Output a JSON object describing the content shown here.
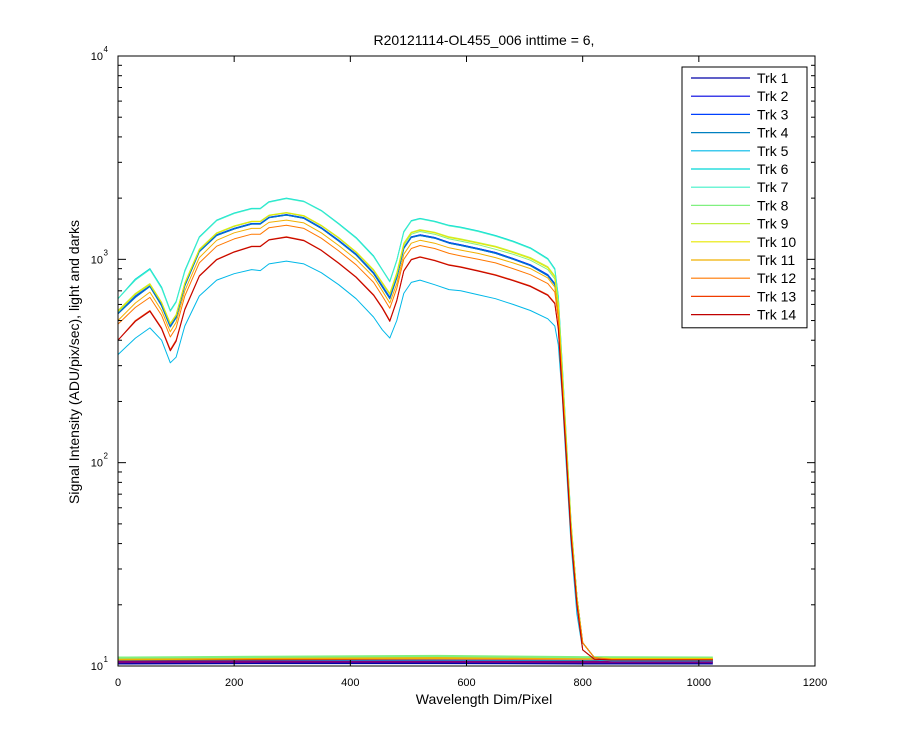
{
  "chart_data": {
    "type": "line",
    "title": "R20121114-OL455_006 inttime = 6,",
    "xlabel": "Wavelength Dim/Pixel",
    "ylabel": "Signal Intensity (ADU/pix/sec), light and darks",
    "xlim": [
      0,
      1200
    ],
    "ylim": [
      10,
      10000
    ],
    "yscale": "log",
    "grid": false,
    "legend_position": "top-right",
    "x_ticks": [
      0,
      200,
      400,
      600,
      800,
      1000,
      1200
    ],
    "y_ticks": [
      {
        "value": 10,
        "base": "10",
        "exp": "1"
      },
      {
        "value": 100,
        "base": "10",
        "exp": "2"
      },
      {
        "value": 1000,
        "base": "10",
        "exp": "3"
      },
      {
        "value": 10000,
        "base": "10",
        "exp": "4"
      }
    ],
    "profile_x": [
      0,
      30,
      55,
      75,
      90,
      100,
      115,
      140,
      170,
      200,
      230,
      245,
      260,
      290,
      320,
      350,
      380,
      410,
      440,
      455,
      468,
      480,
      492,
      505,
      520,
      545,
      570,
      590,
      620,
      650,
      680,
      710,
      740,
      752,
      758,
      765,
      772,
      780,
      790,
      800,
      820,
      850,
      1024
    ],
    "series": [
      {
        "name": "Trk 1",
        "color": "#0000a8",
        "values": [
          540,
          660,
          740,
          600,
          470,
          520,
          750,
          1100,
          1320,
          1420,
          1500,
          1500,
          1610,
          1660,
          1600,
          1430,
          1240,
          1060,
          860,
          740,
          650,
          820,
          1140,
          1290,
          1320,
          1280,
          1210,
          1180,
          1130,
          1080,
          1010,
          940,
          840,
          760,
          560,
          260,
          120,
          50,
          22,
          13,
          11,
          10.8,
          10.8
        ]
      },
      {
        "name": "Trk 2",
        "color": "#0000e0",
        "values": [
          540,
          650,
          735,
          590,
          465,
          515,
          740,
          1090,
          1310,
          1410,
          1490,
          1490,
          1600,
          1650,
          1590,
          1420,
          1230,
          1050,
          850,
          730,
          640,
          810,
          1130,
          1280,
          1310,
          1270,
          1200,
          1170,
          1120,
          1070,
          1000,
          930,
          830,
          750,
          550,
          255,
          118,
          48,
          22,
          13,
          11,
          10.7,
          10.7
        ]
      },
      {
        "name": "Trk 3",
        "color": "#0040ff",
        "values": [
          545,
          660,
          740,
          600,
          470,
          520,
          750,
          1100,
          1320,
          1420,
          1500,
          1500,
          1610,
          1660,
          1600,
          1430,
          1240,
          1060,
          860,
          740,
          650,
          820,
          1140,
          1290,
          1320,
          1280,
          1210,
          1180,
          1130,
          1080,
          1010,
          940,
          840,
          760,
          560,
          260,
          120,
          50,
          22,
          13,
          11,
          10.8,
          10.8
        ]
      },
      {
        "name": "Trk 4",
        "color": "#0080c0",
        "values": [
          540,
          650,
          735,
          590,
          465,
          515,
          740,
          1090,
          1310,
          1410,
          1490,
          1490,
          1600,
          1650,
          1590,
          1420,
          1230,
          1050,
          850,
          730,
          640,
          810,
          1130,
          1280,
          1310,
          1270,
          1200,
          1170,
          1120,
          1070,
          1000,
          930,
          830,
          750,
          550,
          255,
          118,
          48,
          22,
          13,
          11,
          10.7,
          10.7
        ]
      },
      {
        "name": "Trk 5",
        "color": "#00b8e8",
        "values": [
          340,
          410,
          460,
          400,
          310,
          330,
          470,
          660,
          790,
          850,
          890,
          880,
          950,
          980,
          950,
          860,
          750,
          640,
          520,
          450,
          410,
          500,
          680,
          770,
          790,
          750,
          710,
          700,
          670,
          640,
          600,
          560,
          510,
          470,
          380,
          210,
          95,
          40,
          18,
          12,
          10.8,
          10.6,
          10.6
        ]
      },
      {
        "name": "Trk 6",
        "color": "#00d8d8",
        "values": [
          640,
          800,
          900,
          730,
          560,
          620,
          880,
          1290,
          1560,
          1690,
          1780,
          1780,
          1920,
          2000,
          1930,
          1740,
          1500,
          1280,
          1040,
          890,
          780,
          990,
          1370,
          1550,
          1590,
          1540,
          1470,
          1440,
          1380,
          1310,
          1230,
          1140,
          1010,
          900,
          660,
          300,
          130,
          52,
          22,
          13,
          11,
          10.9,
          10.9
        ]
      },
      {
        "name": "Trk 7",
        "color": "#40f0c8",
        "values": [
          640,
          790,
          890,
          720,
          555,
          615,
          870,
          1280,
          1550,
          1680,
          1770,
          1770,
          1910,
          1990,
          1920,
          1730,
          1490,
          1270,
          1030,
          885,
          775,
          985,
          1360,
          1540,
          1580,
          1530,
          1460,
          1430,
          1370,
          1300,
          1220,
          1130,
          1000,
          890,
          655,
          298,
          129,
          51,
          22,
          13,
          11,
          10.9,
          10.9
        ]
      },
      {
        "name": "Trk 8",
        "color": "#80f080",
        "values": [
          550,
          670,
          750,
          610,
          480,
          530,
          760,
          1110,
          1340,
          1450,
          1530,
          1530,
          1640,
          1690,
          1630,
          1460,
          1270,
          1080,
          880,
          760,
          670,
          840,
          1170,
          1330,
          1370,
          1330,
          1260,
          1230,
          1180,
          1120,
          1060,
          990,
          890,
          800,
          590,
          270,
          124,
          50,
          22,
          13,
          11,
          10.9,
          10.9
        ]
      },
      {
        "name": "Trk 9",
        "color": "#c0f040",
        "values": [
          560,
          680,
          760,
          615,
          485,
          535,
          765,
          1120,
          1350,
          1460,
          1540,
          1540,
          1650,
          1700,
          1640,
          1470,
          1280,
          1090,
          890,
          770,
          680,
          860,
          1200,
          1360,
          1400,
          1360,
          1290,
          1260,
          1210,
          1160,
          1090,
          1020,
          920,
          830,
          610,
          280,
          126,
          51,
          22,
          13,
          11,
          10.9,
          10.9
        ]
      },
      {
        "name": "Trk 10",
        "color": "#e8e800",
        "values": [
          555,
          675,
          755,
          612,
          482,
          532,
          762,
          1115,
          1345,
          1455,
          1535,
          1535,
          1645,
          1695,
          1635,
          1465,
          1275,
          1085,
          885,
          765,
          675,
          855,
          1190,
          1350,
          1390,
          1350,
          1280,
          1250,
          1200,
          1150,
          1080,
          1010,
          910,
          820,
          605,
          278,
          125,
          50,
          22,
          13,
          11,
          10.9,
          10.9
        ]
      },
      {
        "name": "Trk 11",
        "color": "#f0b000",
        "values": [
          500,
          610,
          690,
          560,
          440,
          490,
          700,
          1020,
          1240,
          1350,
          1420,
          1420,
          1520,
          1560,
          1510,
          1350,
          1170,
          1000,
          820,
          700,
          610,
          760,
          1060,
          1200,
          1240,
          1200,
          1140,
          1110,
          1070,
          1020,
          960,
          900,
          810,
          730,
          540,
          250,
          115,
          47,
          21,
          13,
          11,
          10.8,
          10.8
        ]
      },
      {
        "name": "Trk 12",
        "color": "#ff7800",
        "values": [
          480,
          580,
          650,
          530,
          415,
          460,
          660,
          960,
          1160,
          1260,
          1330,
          1330,
          1430,
          1470,
          1420,
          1270,
          1100,
          940,
          770,
          660,
          575,
          720,
          1000,
          1130,
          1170,
          1130,
          1070,
          1040,
          1000,
          960,
          900,
          840,
          760,
          690,
          510,
          240,
          112,
          46,
          21,
          13,
          11,
          10.8,
          10.8
        ]
      },
      {
        "name": "Trk 13",
        "color": "#f03c00",
        "values": [
          400,
          500,
          560,
          460,
          360,
          400,
          570,
          830,
          1000,
          1090,
          1160,
          1160,
          1250,
          1290,
          1240,
          1110,
          960,
          820,
          670,
          580,
          500,
          630,
          880,
          1000,
          1030,
          990,
          940,
          920,
          880,
          840,
          790,
          740,
          670,
          610,
          460,
          220,
          105,
          44,
          20,
          12,
          10.8,
          10.7,
          10.7
        ]
      },
      {
        "name": "Trk 14",
        "color": "#c00000",
        "values": [
          400,
          495,
          555,
          455,
          355,
          395,
          565,
          825,
          995,
          1085,
          1155,
          1155,
          1245,
          1285,
          1235,
          1105,
          955,
          815,
          665,
          575,
          495,
          625,
          875,
          995,
          1025,
          985,
          935,
          915,
          875,
          835,
          785,
          735,
          665,
          605,
          455,
          218,
          104,
          43,
          20,
          12,
          10.8,
          10.7,
          10.7
        ]
      }
    ],
    "dark_traces": [
      {
        "color": "#c00000",
        "values": [
          10.6,
          10.65,
          10.65,
          10.6,
          10.6
        ]
      },
      {
        "color": "#f0b000",
        "values": [
          10.8,
          10.9,
          10.95,
          10.9,
          10.8
        ]
      },
      {
        "color": "#80f080",
        "values": [
          11.0,
          11.1,
          11.2,
          11.05,
          11.0
        ]
      },
      {
        "color": "#00b8e8",
        "values": [
          10.5,
          10.55,
          10.6,
          10.55,
          10.5
        ]
      },
      {
        "color": "#0000a8",
        "values": [
          10.3,
          10.35,
          10.35,
          10.3,
          10.3
        ]
      },
      {
        "color": "#800080",
        "values": [
          10.45,
          10.5,
          10.5,
          10.45,
          10.45
        ]
      }
    ],
    "dark_x": [
      0,
      250,
      550,
      800,
      1024
    ]
  }
}
